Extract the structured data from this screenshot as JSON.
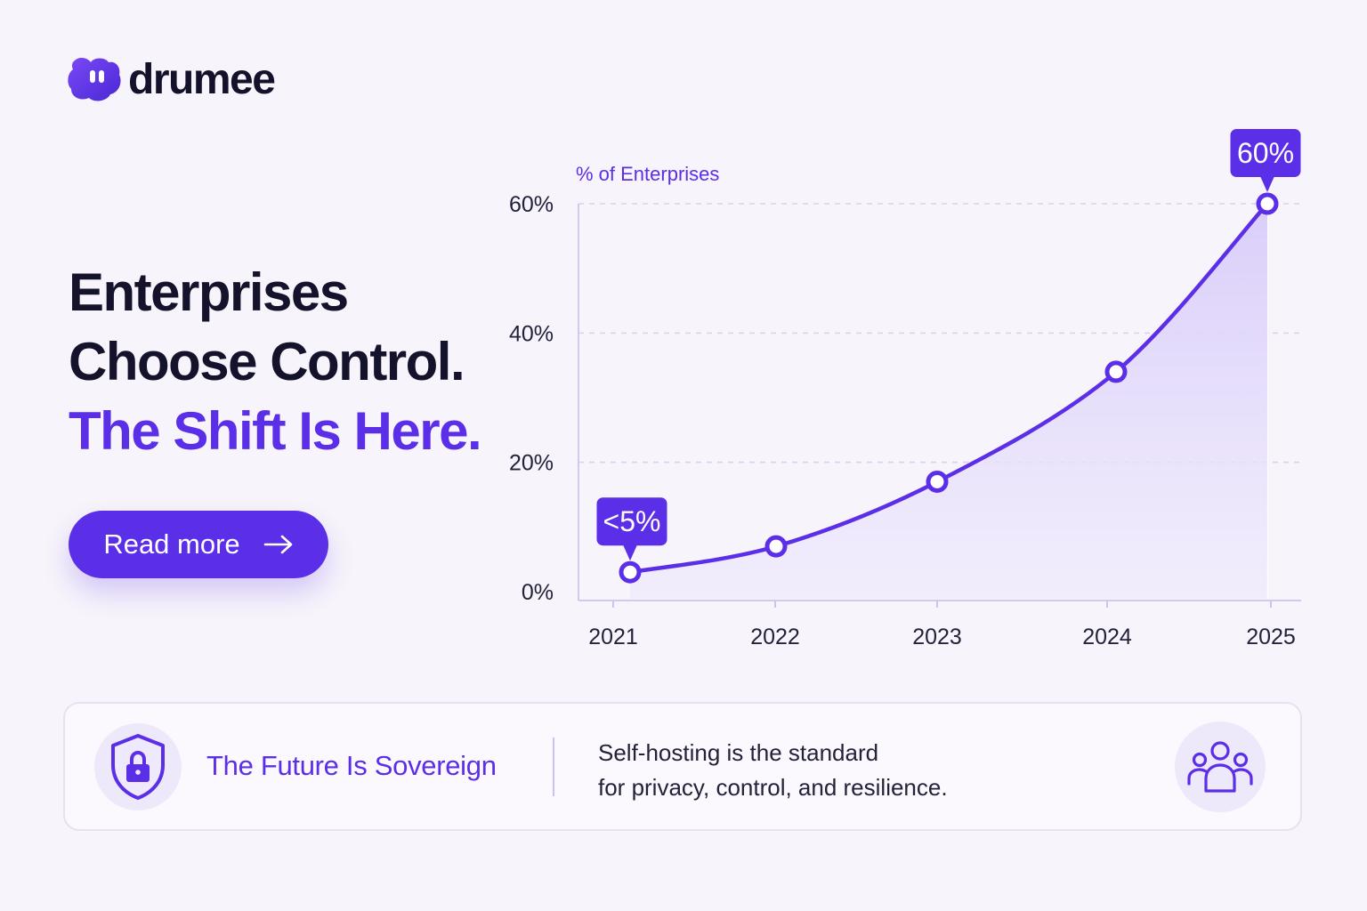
{
  "brand": {
    "name": "drumee",
    "accent": "#5b2ee8",
    "ink": "#14122a"
  },
  "hero": {
    "line1": "Enterprises",
    "line2": "Choose Control.",
    "line3": "The Shift Is Here.",
    "cta_label": "Read more",
    "cta_icon": "arrow-right-icon"
  },
  "chart_data": {
    "type": "area",
    "ylabel": "% of Enterprises",
    "x": [
      "2021",
      "2022",
      "2023",
      "2024",
      "2025"
    ],
    "values": [
      3,
      7,
      17,
      34,
      60
    ],
    "ylim": [
      0,
      60
    ],
    "yticks": [
      0,
      20,
      40,
      60
    ],
    "ytick_labels": [
      "0%",
      "20%",
      "40%",
      "60%"
    ],
    "grid": true,
    "line_color": "#5b2ee8",
    "fill_color": "#ddd3fb",
    "callouts": [
      {
        "index": 0,
        "label": "<5%"
      },
      {
        "index": 4,
        "label": "60%"
      }
    ]
  },
  "banner": {
    "icon": "shield-lock-icon",
    "title": "The Future Is Sovereign",
    "text_line1": "Self-hosting is the standard",
    "text_line2": "for privacy, control, and resilience.",
    "right_icon": "users-icon"
  }
}
